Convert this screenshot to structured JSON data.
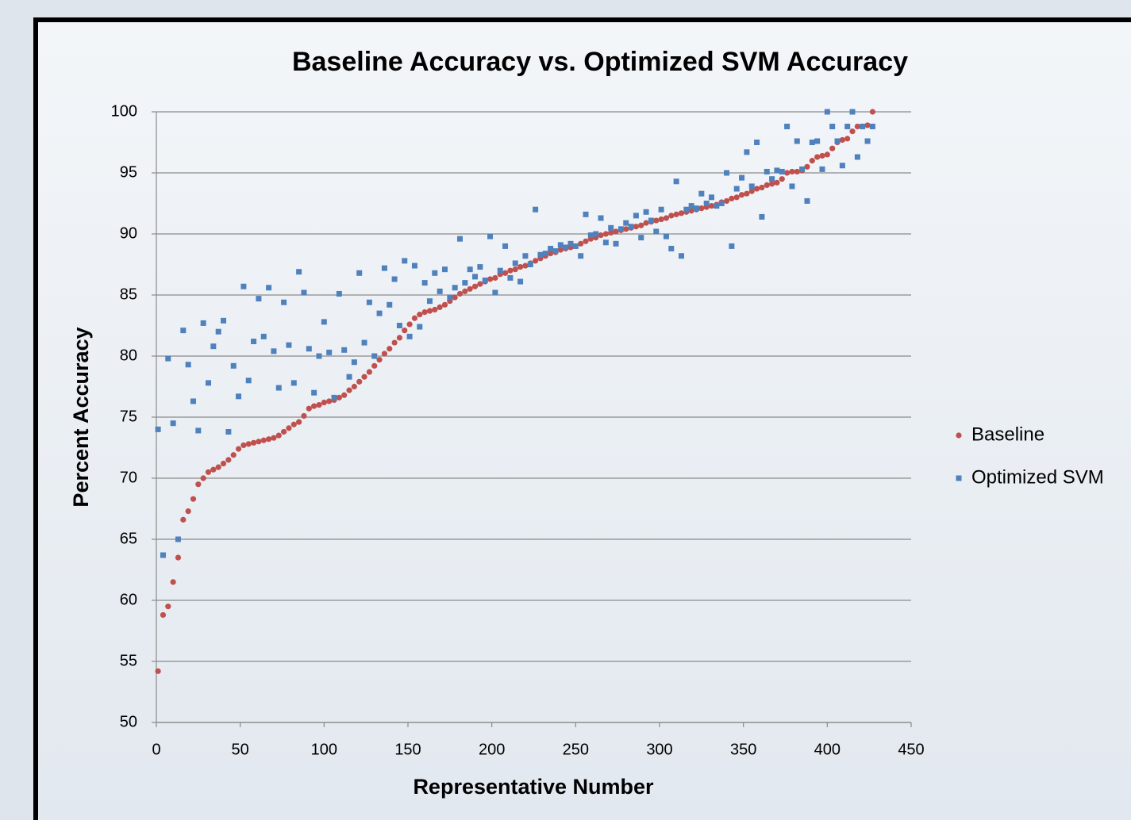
{
  "chart_data": {
    "type": "scatter",
    "title": "Baseline Accuracy vs. Optimized SVM Accuracy",
    "x_label": "Representative Number",
    "y_label": "Percent Accuracy",
    "xlim": [
      0,
      450
    ],
    "xticks": [
      0,
      50,
      100,
      150,
      200,
      250,
      300,
      350,
      400,
      450
    ],
    "ylim": [
      50,
      100
    ],
    "yticks": [
      50,
      55,
      60,
      65,
      70,
      75,
      80,
      85,
      90,
      95,
      100
    ],
    "grid": true,
    "legend": "right",
    "x": [
      1,
      4,
      7,
      10,
      13,
      16,
      19,
      22,
      25,
      28,
      31,
      34,
      37,
      40,
      43,
      46,
      49,
      52,
      55,
      58,
      61,
      64,
      67,
      70,
      73,
      76,
      79,
      82,
      85,
      88,
      91,
      94,
      97,
      100,
      103,
      106,
      109,
      112,
      115,
      118,
      121,
      124,
      127,
      130,
      133,
      136,
      139,
      142,
      145,
      148,
      151,
      154,
      157,
      160,
      163,
      166,
      169,
      172,
      175,
      178,
      181,
      184,
      187,
      190,
      193,
      196,
      199,
      202,
      205,
      208,
      211,
      214,
      217,
      220,
      223,
      226,
      229,
      232,
      235,
      238,
      241,
      244,
      247,
      250,
      253,
      256,
      259,
      262,
      265,
      268,
      271,
      274,
      277,
      280,
      283,
      286,
      289,
      292,
      295,
      298,
      301,
      304,
      307,
      310,
      313,
      316,
      319,
      322,
      325,
      328,
      331,
      334,
      337,
      340,
      343,
      346,
      349,
      352,
      355,
      358,
      361,
      364,
      367,
      370,
      373,
      376,
      379,
      382,
      385,
      388,
      391,
      394,
      397,
      400,
      403,
      406,
      409,
      412,
      415,
      418,
      421,
      424,
      427
    ],
    "series": [
      {
        "name": "Baseline",
        "color": "#c0504d",
        "marker": "circle",
        "values": [
          54.2,
          58.8,
          59.5,
          61.5,
          63.5,
          66.6,
          67.3,
          68.3,
          69.5,
          70.0,
          70.5,
          70.7,
          70.9,
          71.2,
          71.5,
          71.9,
          72.4,
          72.7,
          72.8,
          72.9,
          73.0,
          73.1,
          73.2,
          73.3,
          73.5,
          73.8,
          74.1,
          74.4,
          74.6,
          75.1,
          75.7,
          75.9,
          76.0,
          76.2,
          76.3,
          76.4,
          76.6,
          76.8,
          77.2,
          77.5,
          77.9,
          78.3,
          78.7,
          79.2,
          79.7,
          80.2,
          80.6,
          81.1,
          81.5,
          82.1,
          82.6,
          83.1,
          83.4,
          83.6,
          83.7,
          83.8,
          84.0,
          84.2,
          84.5,
          84.8,
          85.1,
          85.3,
          85.5,
          85.7,
          85.9,
          86.1,
          86.3,
          86.4,
          86.7,
          86.8,
          87.0,
          87.1,
          87.3,
          87.4,
          87.6,
          87.8,
          88.0,
          88.2,
          88.4,
          88.5,
          88.7,
          88.8,
          88.9,
          89.0,
          89.2,
          89.4,
          89.6,
          89.7,
          89.9,
          90.0,
          90.1,
          90.2,
          90.3,
          90.4,
          90.5,
          90.6,
          90.7,
          90.9,
          91.0,
          91.1,
          91.2,
          91.3,
          91.5,
          91.6,
          91.7,
          91.8,
          91.9,
          92.0,
          92.1,
          92.2,
          92.3,
          92.4,
          92.6,
          92.7,
          92.9,
          93.0,
          93.2,
          93.3,
          93.5,
          93.7,
          93.8,
          94.0,
          94.1,
          94.2,
          94.5,
          95.0,
          95.1,
          95.1,
          95.2,
          95.5,
          96.0,
          96.3,
          96.4,
          96.5,
          97.0,
          97.5,
          97.7,
          97.8,
          98.4,
          98.8,
          98.8,
          98.9,
          100.0
        ]
      },
      {
        "name": "Optimized SVM",
        "color": "#4f81bd",
        "marker": "square",
        "values": [
          74.0,
          63.7,
          79.8,
          74.5,
          65.0,
          82.1,
          79.3,
          76.3,
          73.9,
          82.7,
          77.8,
          80.8,
          82.0,
          82.9,
          73.8,
          79.2,
          76.7,
          85.7,
          78.0,
          81.2,
          84.7,
          81.6,
          85.6,
          80.4,
          77.4,
          84.4,
          80.9,
          77.8,
          86.9,
          85.2,
          80.6,
          77.0,
          80.0,
          82.8,
          80.3,
          76.6,
          85.1,
          80.5,
          78.3,
          79.5,
          86.8,
          81.1,
          84.4,
          80.0,
          83.5,
          87.2,
          84.2,
          86.3,
          82.5,
          87.8,
          81.6,
          87.4,
          82.4,
          86.0,
          84.5,
          86.8,
          85.3,
          87.1,
          84.8,
          85.6,
          89.6,
          86.0,
          87.1,
          86.5,
          87.3,
          86.2,
          89.8,
          85.2,
          87.0,
          89.0,
          86.4,
          87.6,
          86.1,
          88.2,
          87.5,
          92.0,
          88.3,
          88.4,
          88.8,
          88.6,
          89.1,
          88.9,
          89.2,
          89.0,
          88.2,
          91.6,
          89.9,
          90.0,
          91.3,
          89.3,
          90.5,
          89.2,
          90.4,
          90.9,
          90.6,
          91.5,
          89.7,
          91.8,
          91.1,
          90.2,
          92.0,
          89.8,
          88.8,
          94.3,
          88.2,
          92.0,
          92.3,
          92.1,
          93.3,
          92.5,
          93.0,
          92.3,
          92.5,
          95.0,
          89.0,
          93.7,
          94.6,
          96.7,
          93.9,
          97.5,
          91.4,
          95.1,
          94.5,
          95.2,
          95.1,
          98.8,
          93.9,
          97.6,
          95.3,
          92.7,
          97.5,
          97.6,
          95.3,
          100.0,
          98.8,
          97.6,
          95.6,
          98.8,
          100.0,
          96.3,
          98.8,
          97.6,
          98.8
        ]
      }
    ]
  }
}
